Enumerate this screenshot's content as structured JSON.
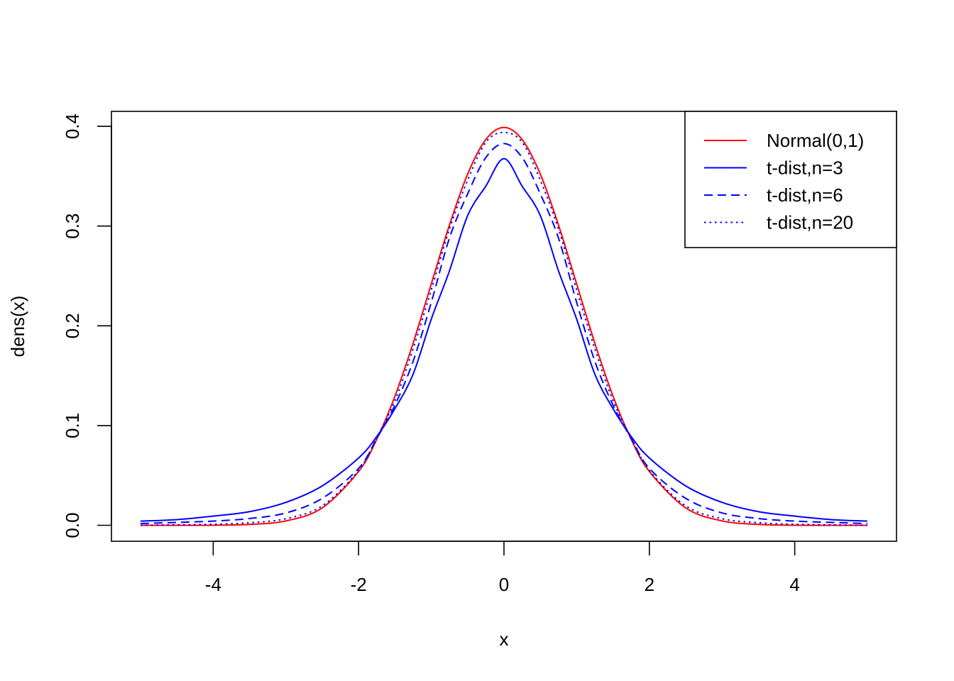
{
  "chart_data": {
    "type": "line",
    "title": "",
    "xlabel": "x",
    "ylabel": "dens(x)",
    "xlim": [
      -5.4,
      5.4
    ],
    "ylim": [
      -0.016,
      0.415
    ],
    "x_ticks": [
      -4,
      -2,
      0,
      2,
      4
    ],
    "x_tick_labels": [
      "-4",
      "-2",
      "0",
      "2",
      "4"
    ],
    "y_ticks": [
      0.0,
      0.1,
      0.2,
      0.3,
      0.4
    ],
    "y_tick_labels": [
      "0.0",
      "0.1",
      "0.2",
      "0.3",
      "0.4"
    ],
    "grid": false,
    "legend_position": "top-right",
    "x": [
      -5.0,
      -4.5,
      -4.0,
      -3.5,
      -3.0,
      -2.5,
      -2.0,
      -1.75,
      -1.5,
      -1.25,
      -1.0,
      -0.75,
      -0.5,
      -0.25,
      0.0,
      0.25,
      0.5,
      0.75,
      1.0,
      1.25,
      1.5,
      1.75,
      2.0,
      2.5,
      3.0,
      3.5,
      4.0,
      4.5,
      5.0
    ],
    "series": [
      {
        "name": "Normal(0,1)",
        "color": "#ff0000",
        "dash": "solid",
        "values": [
          0.0,
          0.0,
          0.0001,
          0.0009,
          0.0044,
          0.0175,
          0.054,
          0.0863,
          0.1295,
          0.1826,
          0.242,
          0.3011,
          0.3521,
          0.3867,
          0.3989,
          0.3867,
          0.3521,
          0.3011,
          0.242,
          0.1826,
          0.1295,
          0.0863,
          0.054,
          0.0175,
          0.0044,
          0.0009,
          0.0001,
          0.0,
          0.0
        ]
      },
      {
        "name": "t-dist,n=3",
        "color": "#0000ff",
        "dash": "solid",
        "values": [
          0.0042,
          0.0057,
          0.0092,
          0.0137,
          0.023,
          0.0395,
          0.0675,
          0.089,
          0.1169,
          0.1515,
          0.2067,
          0.2551,
          0.3105,
          0.34,
          0.3676,
          0.34,
          0.3105,
          0.2551,
          0.2067,
          0.1515,
          0.1169,
          0.089,
          0.0675,
          0.0395,
          0.023,
          0.0137,
          0.0092,
          0.0057,
          0.0042
        ]
      },
      {
        "name": "t-dist,n=6",
        "color": "#0000ff",
        "dash": "dashed",
        "values": [
          0.0018,
          0.0029,
          0.0042,
          0.0068,
          0.0124,
          0.027,
          0.057,
          0.087,
          0.1205,
          0.1645,
          0.2235,
          0.288,
          0.3323,
          0.3687,
          0.3827,
          0.3687,
          0.3323,
          0.288,
          0.2235,
          0.1645,
          0.1205,
          0.087,
          0.057,
          0.027,
          0.0124,
          0.0068,
          0.0042,
          0.0029,
          0.0018
        ]
      },
      {
        "name": "t-dist,n=20",
        "color": "#0000ff",
        "dash": "dotted",
        "values": [
          0.0,
          0.0004,
          0.001,
          0.0026,
          0.0066,
          0.0195,
          0.055,
          0.088,
          0.125,
          0.177,
          0.236,
          0.297,
          0.346,
          0.384,
          0.3939,
          0.384,
          0.346,
          0.297,
          0.236,
          0.177,
          0.125,
          0.088,
          0.055,
          0.0195,
          0.0066,
          0.0026,
          0.001,
          0.0004,
          0.0
        ]
      }
    ]
  }
}
